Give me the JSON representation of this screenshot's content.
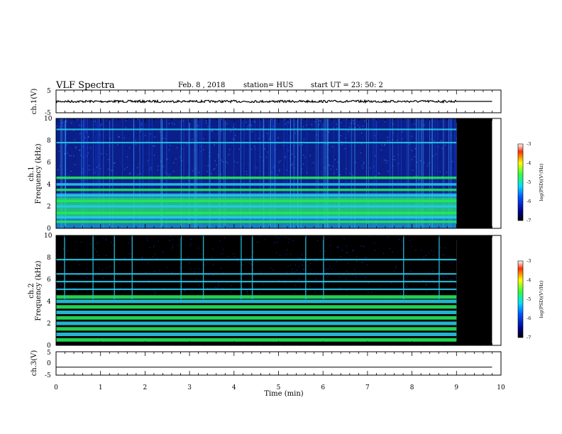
{
  "header": {
    "title": "VLF Spectra",
    "date": "Feb. 8 , 2018",
    "station": "station= HUS",
    "start": "start UT = 23: 50: 2"
  },
  "chart_data": [
    {
      "type": "line",
      "panel": "ch1-waveform",
      "ylabel": "ch.1(V)",
      "ylim": [
        -5,
        5
      ],
      "yticks": [
        "5",
        "-5"
      ],
      "xlim": [
        0,
        10
      ],
      "series": [
        {
          "x": [
            0,
            9.0,
            9.0,
            9.8
          ],
          "y": [
            0.0,
            0.0,
            0.0,
            0.0
          ],
          "note_visual": "noisy trace to 9 min, flat after"
        }
      ]
    },
    {
      "type": "heatmap",
      "panel": "ch1-spectrogram",
      "ylabel_main": "Frequency (kHz)",
      "ylabel_channel": "ch.1",
      "ylim": [
        0,
        10
      ],
      "yticks": [
        "0",
        "2",
        "4",
        "6",
        "8",
        "10"
      ],
      "xlim": [
        0,
        10
      ],
      "data_end_min": 9.0,
      "blank_until_min": 9.8,
      "bands_khz": [
        0.6,
        1.0,
        1.4,
        2.0,
        2.5,
        3.0,
        3.5,
        4.0,
        4.6,
        7.8,
        9.0
      ],
      "colorbar": {
        "label": "log(PSD)(V²/Hz)",
        "ticks": [
          "-3",
          "-4",
          "-5",
          "-6",
          "-7"
        ],
        "range": [
          -7,
          -3
        ]
      }
    },
    {
      "type": "heatmap",
      "panel": "ch2-spectrogram",
      "ylabel_main": "Frequency (kHz)",
      "ylabel_channel": "ch.2",
      "ylim": [
        0,
        10
      ],
      "yticks": [
        "0",
        "2",
        "4",
        "6",
        "8",
        "10"
      ],
      "xlim": [
        0,
        10
      ],
      "data_end_min": 9.0,
      "blank_until_min": 9.8,
      "bands_khz": [
        0.5,
        1.0,
        1.5,
        2.0,
        2.5,
        3.0,
        3.5,
        4.0,
        4.4,
        5.1,
        5.8,
        6.5,
        7.8
      ],
      "spikes_min": [
        0.18,
        0.82,
        1.3,
        1.7,
        2.8,
        3.3,
        4.15,
        4.4,
        5.6,
        6.0,
        7.8,
        8.6
      ],
      "colorbar": {
        "label": "log(PSD)(V²/Hz)",
        "ticks": [
          "-3",
          "-4",
          "-5",
          "-6",
          "-7"
        ],
        "range": [
          -7,
          -3
        ]
      }
    },
    {
      "type": "line",
      "panel": "ch3-waveform",
      "ylabel": "ch.3(V)",
      "ylim": [
        -5,
        5
      ],
      "yticks": [
        "5",
        "0",
        "-5"
      ],
      "xlim": [
        0,
        10
      ],
      "series": [
        {
          "x": [
            0,
            9.8
          ],
          "y": [
            -1.6,
            -1.6
          ]
        }
      ]
    }
  ],
  "xaxis": {
    "label": "Time (min)",
    "ticks": [
      "0",
      "1",
      "2",
      "3",
      "4",
      "5",
      "6",
      "7",
      "8",
      "9",
      "10"
    ]
  },
  "colors": {
    "band_low": "#0a33d6",
    "band_mid": "#27c8e8",
    "band_high": "#25e85a",
    "background_ch1": "#0b1f8a",
    "background_ch2": "#000000"
  }
}
